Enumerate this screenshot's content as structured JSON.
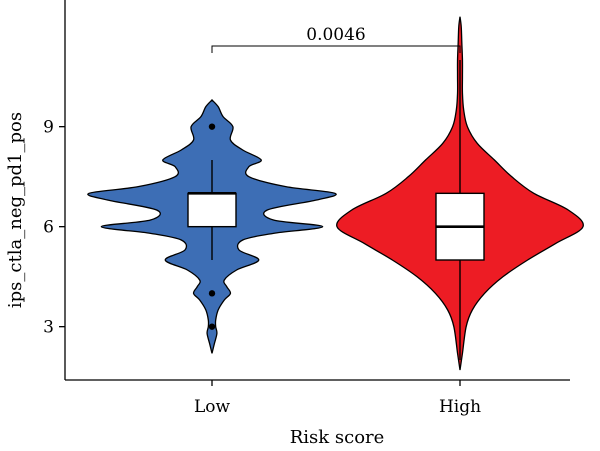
{
  "chart_data": {
    "type": "violin",
    "xlabel": "Risk score",
    "ylabel": "ips_ctla_neg_pd1_pos",
    "categories": [
      "Low",
      "High"
    ],
    "ylim": [
      1.4,
      12.8
    ],
    "yticks": [
      3,
      6,
      9
    ],
    "colors": {
      "Low": "#3d6eb5",
      "High": "#ed1c24"
    },
    "comparison": {
      "groups": [
        "Low",
        "High"
      ],
      "p_value": "0.0046"
    },
    "groups": [
      {
        "name": "Low",
        "color": "#3d6eb5",
        "min": 2.2,
        "max": 9.8,
        "q1": 6,
        "median": 7,
        "q3": 7,
        "whisker_low": 5,
        "whisker_high": 8,
        "outliers": [
          9,
          4,
          3
        ],
        "density": [
          [
            2.2,
            0.0
          ],
          [
            2.5,
            0.02
          ],
          [
            2.8,
            0.04
          ],
          [
            3.0,
            0.03
          ],
          [
            3.2,
            0.03
          ],
          [
            3.5,
            0.05
          ],
          [
            3.8,
            0.1
          ],
          [
            4.0,
            0.15
          ],
          [
            4.2,
            0.12
          ],
          [
            4.4,
            0.1
          ],
          [
            4.7,
            0.2
          ],
          [
            5.0,
            0.38
          ],
          [
            5.3,
            0.22
          ],
          [
            5.6,
            0.25
          ],
          [
            5.8,
            0.5
          ],
          [
            6.0,
            0.9
          ],
          [
            6.2,
            0.5
          ],
          [
            6.5,
            0.45
          ],
          [
            6.8,
            0.85
          ],
          [
            7.0,
            1.0
          ],
          [
            7.2,
            0.6
          ],
          [
            7.5,
            0.3
          ],
          [
            7.8,
            0.3
          ],
          [
            8.0,
            0.4
          ],
          [
            8.3,
            0.25
          ],
          [
            8.6,
            0.15
          ],
          [
            9.0,
            0.17
          ],
          [
            9.3,
            0.09
          ],
          [
            9.6,
            0.05
          ],
          [
            9.8,
            0.0
          ]
        ]
      },
      {
        "name": "High",
        "color": "#ed1c24",
        "min": 1.7,
        "max": 12.3,
        "q1": 5,
        "median": 6,
        "q3": 7,
        "whisker_low": 2,
        "whisker_high": 11,
        "outliers": [],
        "density": [
          [
            1.7,
            0.0
          ],
          [
            2.2,
            0.02
          ],
          [
            3.0,
            0.05
          ],
          [
            3.5,
            0.1
          ],
          [
            4.0,
            0.2
          ],
          [
            4.5,
            0.35
          ],
          [
            5.0,
            0.55
          ],
          [
            5.5,
            0.78
          ],
          [
            6.0,
            1.0
          ],
          [
            6.5,
            0.88
          ],
          [
            7.0,
            0.6
          ],
          [
            7.5,
            0.42
          ],
          [
            8.0,
            0.28
          ],
          [
            8.5,
            0.14
          ],
          [
            9.0,
            0.06
          ],
          [
            9.5,
            0.03
          ],
          [
            10.0,
            0.02
          ],
          [
            10.5,
            0.02
          ],
          [
            11.0,
            0.02
          ],
          [
            11.5,
            0.015
          ],
          [
            12.0,
            0.01
          ],
          [
            12.3,
            0.0
          ]
        ]
      }
    ]
  }
}
